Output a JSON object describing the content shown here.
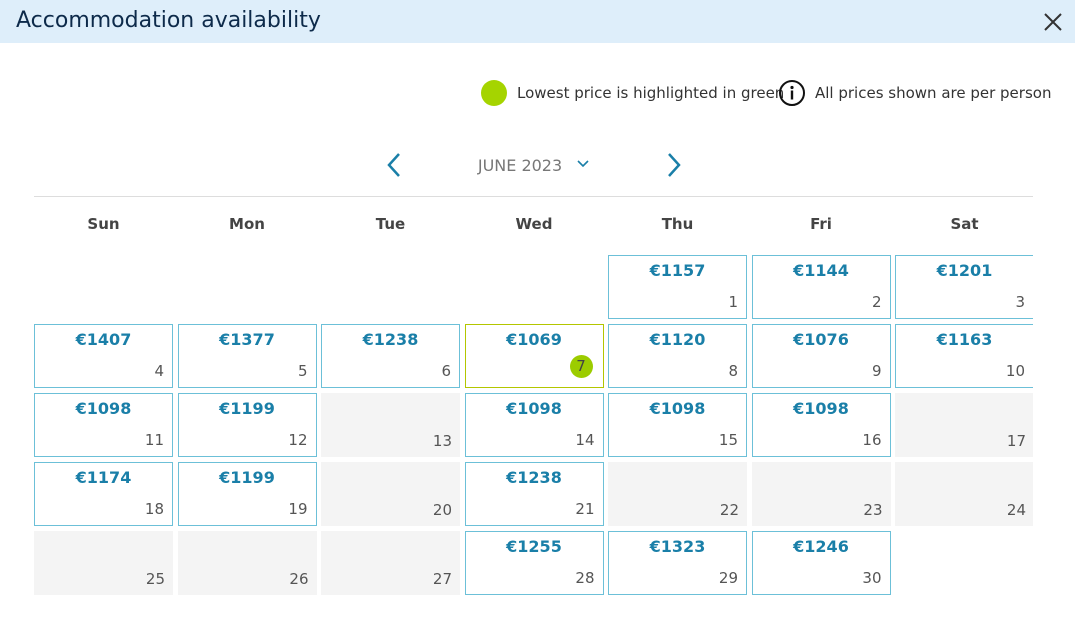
{
  "header": {
    "title": "Accommodation availability"
  },
  "legend": {
    "lowest": "Lowest price is highlighted in green",
    "info": "All prices shown are per person"
  },
  "calendar": {
    "month": "JUNE 2023",
    "weekdays": [
      "Sun",
      "Mon",
      "Tue",
      "Wed",
      "Thu",
      "Fri",
      "Sat"
    ],
    "weeks": [
      [
        null,
        null,
        null,
        null,
        {
          "day": "1",
          "price": "€1157"
        },
        {
          "day": "2",
          "price": "€1144"
        },
        {
          "day": "3",
          "price": "€1201"
        }
      ],
      [
        {
          "day": "4",
          "price": "€1407"
        },
        {
          "day": "5",
          "price": "€1377"
        },
        {
          "day": "6",
          "price": "€1238"
        },
        {
          "day": "7",
          "price": "€1069",
          "highlight": true
        },
        {
          "day": "8",
          "price": "€1120"
        },
        {
          "day": "9",
          "price": "€1076"
        },
        {
          "day": "10",
          "price": "€1163"
        }
      ],
      [
        {
          "day": "11",
          "price": "€1098"
        },
        {
          "day": "12",
          "price": "€1199"
        },
        {
          "day": "13"
        },
        {
          "day": "14",
          "price": "€1098"
        },
        {
          "day": "15",
          "price": "€1098"
        },
        {
          "day": "16",
          "price": "€1098"
        },
        {
          "day": "17"
        }
      ],
      [
        {
          "day": "18",
          "price": "€1174"
        },
        {
          "day": "19",
          "price": "€1199"
        },
        {
          "day": "20"
        },
        {
          "day": "21",
          "price": "€1238"
        },
        {
          "day": "22"
        },
        {
          "day": "23"
        },
        {
          "day": "24"
        }
      ],
      [
        {
          "day": "25"
        },
        {
          "day": "26"
        },
        {
          "day": "27"
        },
        {
          "day": "28",
          "price": "€1255"
        },
        {
          "day": "29",
          "price": "€1323"
        },
        {
          "day": "30",
          "price": "€1246"
        },
        null
      ]
    ]
  }
}
